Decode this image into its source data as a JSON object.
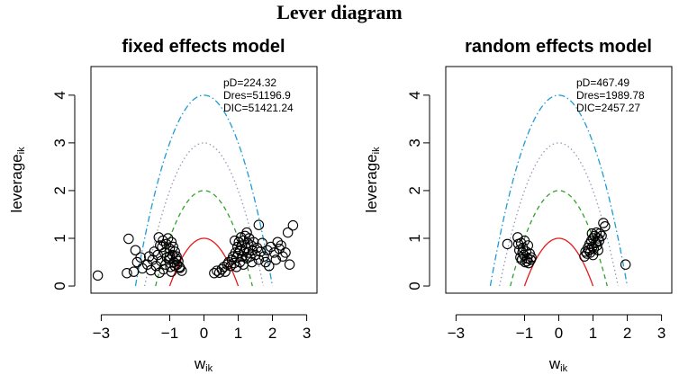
{
  "figure_title": "Lever diagram",
  "chart_data": [
    {
      "type": "scatter",
      "title": "fixed effects model",
      "xlabel": {
        "base": "w",
        "sub": "ik"
      },
      "ylabel": {
        "base": "leverage",
        "sub": "ik"
      },
      "xlim": [
        -3.3,
        3.3
      ],
      "ylim": [
        -0.15,
        4.6
      ],
      "xticks": [
        -3,
        -1,
        0,
        1,
        2,
        3
      ],
      "xtick_labels": [
        "−3",
        "−1",
        "0",
        "1",
        "2",
        "3"
      ],
      "yticks": [
        0,
        1,
        2,
        3,
        4
      ],
      "yticks_labels": [
        "0",
        "1",
        "2",
        "3",
        "4"
      ],
      "annotations": [
        "pD=224.32",
        "Dres=51196.9",
        "DIC=51421.24"
      ],
      "curves": [
        {
          "name": "c=1",
          "c": 1,
          "color": "#e31a1c",
          "dash": "solid"
        },
        {
          "name": "c=2",
          "c": 2,
          "color": "#33a02c",
          "dash": "dashed"
        },
        {
          "name": "c=3",
          "c": 3,
          "color": "#9999bb",
          "dash": "dotted"
        },
        {
          "name": "c=4",
          "c": 4,
          "color": "#1f9bd6",
          "dash": "dotdash"
        }
      ],
      "points": [
        [
          -3.1,
          0.22
        ],
        [
          -2.25,
          0.27
        ],
        [
          -2.2,
          0.99
        ],
        [
          -2.05,
          0.3
        ],
        [
          -2.0,
          0.75
        ],
        [
          -1.95,
          0.5
        ],
        [
          -1.85,
          0.6
        ],
        [
          -1.8,
          0.37
        ],
        [
          -1.65,
          0.45
        ],
        [
          -1.6,
          0.62
        ],
        [
          -1.55,
          0.33
        ],
        [
          -1.5,
          0.55
        ],
        [
          -1.45,
          0.72
        ],
        [
          -1.4,
          0.42
        ],
        [
          -1.35,
          0.65
        ],
        [
          -1.3,
          0.28
        ],
        [
          -1.28,
          0.85
        ],
        [
          -1.25,
          0.52
        ],
        [
          -1.2,
          0.95
        ],
        [
          -1.18,
          0.35
        ],
        [
          -1.15,
          0.7
        ],
        [
          -1.12,
          0.45
        ],
        [
          -1.1,
          0.88
        ],
        [
          -1.08,
          0.6
        ],
        [
          -1.05,
          1.0
        ],
        [
          -1.02,
          0.55
        ],
        [
          -1.0,
          0.78
        ],
        [
          -0.98,
          0.4
        ],
        [
          -0.95,
          0.92
        ],
        [
          -0.92,
          0.65
        ],
        [
          -0.9,
          0.82
        ],
        [
          -0.88,
          0.5
        ],
        [
          -0.85,
          0.72
        ],
        [
          -0.82,
          0.58
        ],
        [
          -0.8,
          0.62
        ],
        [
          -0.78,
          0.45
        ],
        [
          -0.75,
          0.52
        ],
        [
          -0.72,
          0.4
        ],
        [
          -0.7,
          0.38
        ],
        [
          -0.65,
          0.32
        ],
        [
          -1.32,
          1.02
        ],
        [
          -0.95,
          0.3
        ],
        [
          -1.22,
          0.82
        ],
        [
          -1.0,
          0.62
        ],
        [
          -0.85,
          0.42
        ],
        [
          0.3,
          0.27
        ],
        [
          0.38,
          0.32
        ],
        [
          0.45,
          0.28
        ],
        [
          0.52,
          0.35
        ],
        [
          0.58,
          0.4
        ],
        [
          0.62,
          0.3
        ],
        [
          0.68,
          0.45
        ],
        [
          0.72,
          0.5
        ],
        [
          0.78,
          0.42
        ],
        [
          0.82,
          0.55
        ],
        [
          0.85,
          0.62
        ],
        [
          0.88,
          0.48
        ],
        [
          0.92,
          0.7
        ],
        [
          0.95,
          0.6
        ],
        [
          0.98,
          0.82
        ],
        [
          1.0,
          0.68
        ],
        [
          1.02,
          0.92
        ],
        [
          1.05,
          0.75
        ],
        [
          1.08,
          1.02
        ],
        [
          1.1,
          0.85
        ],
        [
          1.12,
          0.62
        ],
        [
          1.15,
          0.95
        ],
        [
          1.18,
          0.72
        ],
        [
          1.2,
          1.05
        ],
        [
          1.22,
          0.8
        ],
        [
          1.25,
          0.58
        ],
        [
          1.28,
          0.9
        ],
        [
          1.3,
          0.7
        ],
        [
          1.32,
          1.0
        ],
        [
          1.35,
          0.62
        ],
        [
          1.38,
          0.85
        ],
        [
          1.4,
          0.5
        ],
        [
          1.42,
          0.75
        ],
        [
          1.45,
          0.92
        ],
        [
          1.5,
          0.65
        ],
        [
          1.55,
          0.8
        ],
        [
          1.6,
          1.28
        ],
        [
          1.6,
          0.55
        ],
        [
          1.65,
          0.72
        ],
        [
          1.7,
          0.9
        ],
        [
          1.75,
          0.62
        ],
        [
          1.8,
          0.5
        ],
        [
          1.85,
          0.75
        ],
        [
          1.9,
          0.42
        ],
        [
          1.95,
          0.82
        ],
        [
          2.05,
          0.7
        ],
        [
          2.1,
          0.55
        ],
        [
          2.15,
          0.92
        ],
        [
          2.2,
          0.78
        ],
        [
          2.25,
          0.85
        ],
        [
          2.3,
          0.62
        ],
        [
          2.38,
          0.7
        ],
        [
          2.45,
          1.12
        ],
        [
          2.5,
          0.45
        ],
        [
          2.6,
          1.27
        ],
        [
          0.95,
          0.4
        ],
        [
          1.05,
          0.5
        ],
        [
          1.25,
          1.12
        ],
        [
          0.9,
          0.95
        ],
        [
          1.15,
          0.45
        ]
      ]
    },
    {
      "type": "scatter",
      "title": "random effects model",
      "xlabel": {
        "base": "w",
        "sub": "ik"
      },
      "ylabel": {
        "base": "leverage",
        "sub": "ik"
      },
      "xlim": [
        -3.3,
        3.3
      ],
      "ylim": [
        -0.15,
        4.6
      ],
      "xticks": [
        -3,
        -1,
        0,
        1,
        2,
        3
      ],
      "xtick_labels": [
        "−3",
        "−1",
        "0",
        "1",
        "2",
        "3"
      ],
      "yticks": [
        0,
        1,
        2,
        3,
        4
      ],
      "yticks_labels": [
        "0",
        "1",
        "2",
        "3",
        "4"
      ],
      "annotations": [
        "pD=467.49",
        "Dres=1989.78",
        "DIC=2457.27"
      ],
      "curves": [
        {
          "name": "c=1",
          "c": 1,
          "color": "#e31a1c",
          "dash": "solid"
        },
        {
          "name": "c=2",
          "c": 2,
          "color": "#33a02c",
          "dash": "dashed"
        },
        {
          "name": "c=3",
          "c": 3,
          "color": "#9999bb",
          "dash": "dotted"
        },
        {
          "name": "c=4",
          "c": 4,
          "color": "#1f9bd6",
          "dash": "dotdash"
        }
      ],
      "points": [
        [
          -1.5,
          0.88
        ],
        [
          -1.2,
          1.02
        ],
        [
          -1.15,
          0.75
        ],
        [
          -1.12,
          0.6
        ],
        [
          -1.1,
          0.9
        ],
        [
          -1.08,
          0.55
        ],
        [
          -1.05,
          0.8
        ],
        [
          -1.02,
          0.65
        ],
        [
          -1.0,
          0.95
        ],
        [
          -0.98,
          0.5
        ],
        [
          -0.95,
          0.72
        ],
        [
          -0.92,
          0.58
        ],
        [
          -0.9,
          0.85
        ],
        [
          -0.88,
          0.48
        ],
        [
          -0.85,
          0.68
        ],
        [
          -0.82,
          0.55
        ],
        [
          -0.8,
          0.6
        ],
        [
          -1.18,
          0.88
        ],
        [
          -1.06,
          0.7
        ],
        [
          -0.93,
          0.52
        ],
        [
          0.75,
          0.62
        ],
        [
          0.78,
          0.72
        ],
        [
          0.82,
          0.68
        ],
        [
          0.85,
          0.8
        ],
        [
          0.88,
          0.75
        ],
        [
          0.9,
          0.88
        ],
        [
          0.92,
          0.7
        ],
        [
          0.95,
          0.95
        ],
        [
          0.98,
          0.82
        ],
        [
          1.0,
          1.0
        ],
        [
          1.02,
          0.78
        ],
        [
          1.05,
          1.05
        ],
        [
          1.08,
          0.9
        ],
        [
          1.1,
          1.12
        ],
        [
          1.12,
          0.85
        ],
        [
          1.15,
          1.0
        ],
        [
          1.18,
          0.95
        ],
        [
          1.2,
          1.1
        ],
        [
          1.25,
          1.05
        ],
        [
          1.3,
          1.32
        ],
        [
          1.35,
          1.25
        ],
        [
          1.95,
          0.45
        ],
        [
          1.0,
          0.65
        ],
        [
          1.15,
          0.75
        ],
        [
          0.97,
          1.1
        ]
      ]
    }
  ]
}
